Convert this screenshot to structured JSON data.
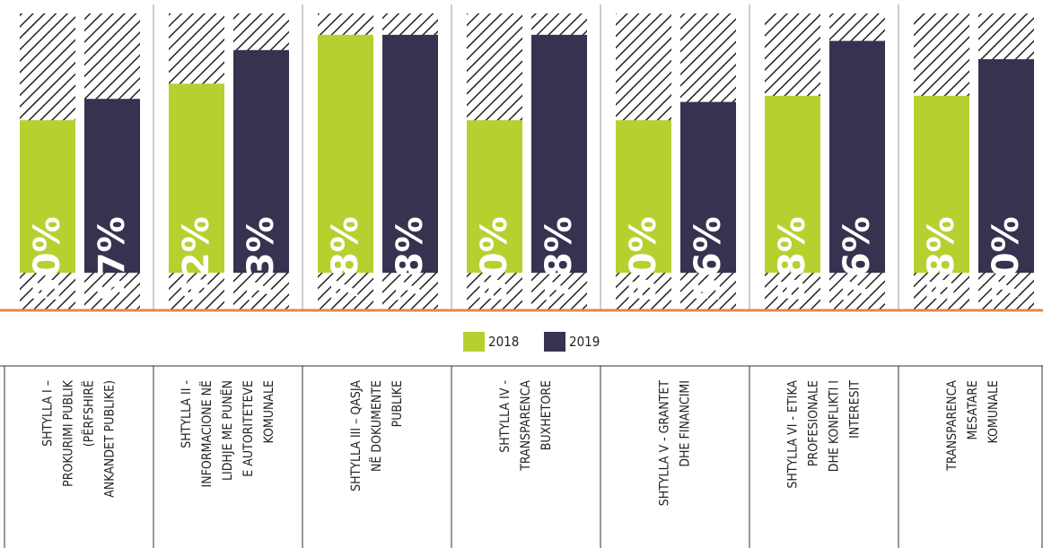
{
  "chart_data": {
    "type": "bar",
    "categories": [
      [
        "SHTYLLA I –",
        "PROKURIMI PUBLIK",
        "(PËRFSHIRË",
        "ANKANDET PUBLIKE)"
      ],
      [
        "SHTYLLA II -",
        "INFORMACIONE NË",
        "LIDHJE ME PUNËN",
        "E AUTORITETEVE",
        "KOMUNALE"
      ],
      [
        "SHTYLLA III – QASJA",
        "NË DOKUMENTE",
        "PUBLIKE"
      ],
      [
        "SHTYLLA IV -",
        "TRANSPARENCA",
        "BUXHETORE"
      ],
      [
        "SHTYLLA V - GRANTET",
        "DHE FINANCIMI"
      ],
      [
        "SHTYLLA VI - ETIKA",
        "PROFESIONALE",
        "DHE KONFLIKTI I",
        "INTERESIT"
      ],
      [
        "TRANSPARENCA",
        "MESATARE",
        "KOMUNALE"
      ]
    ],
    "series": [
      {
        "name": "2018",
        "color": "#b5d130",
        "values": [
          50,
          62,
          78,
          50,
          50,
          58,
          58
        ],
        "value_labels": [
          "50%",
          "62%",
          "78%",
          "50%",
          "50%",
          "58%",
          "58%"
        ]
      },
      {
        "name": "2019",
        "color": "#36324f",
        "values": [
          57,
          73,
          78,
          78,
          56,
          76,
          70
        ],
        "value_labels": [
          "57%",
          "73%",
          "78%",
          "78%",
          "56%",
          "76%",
          "70%"
        ]
      }
    ],
    "ylim": [
      -12,
      85
    ]
  }
}
